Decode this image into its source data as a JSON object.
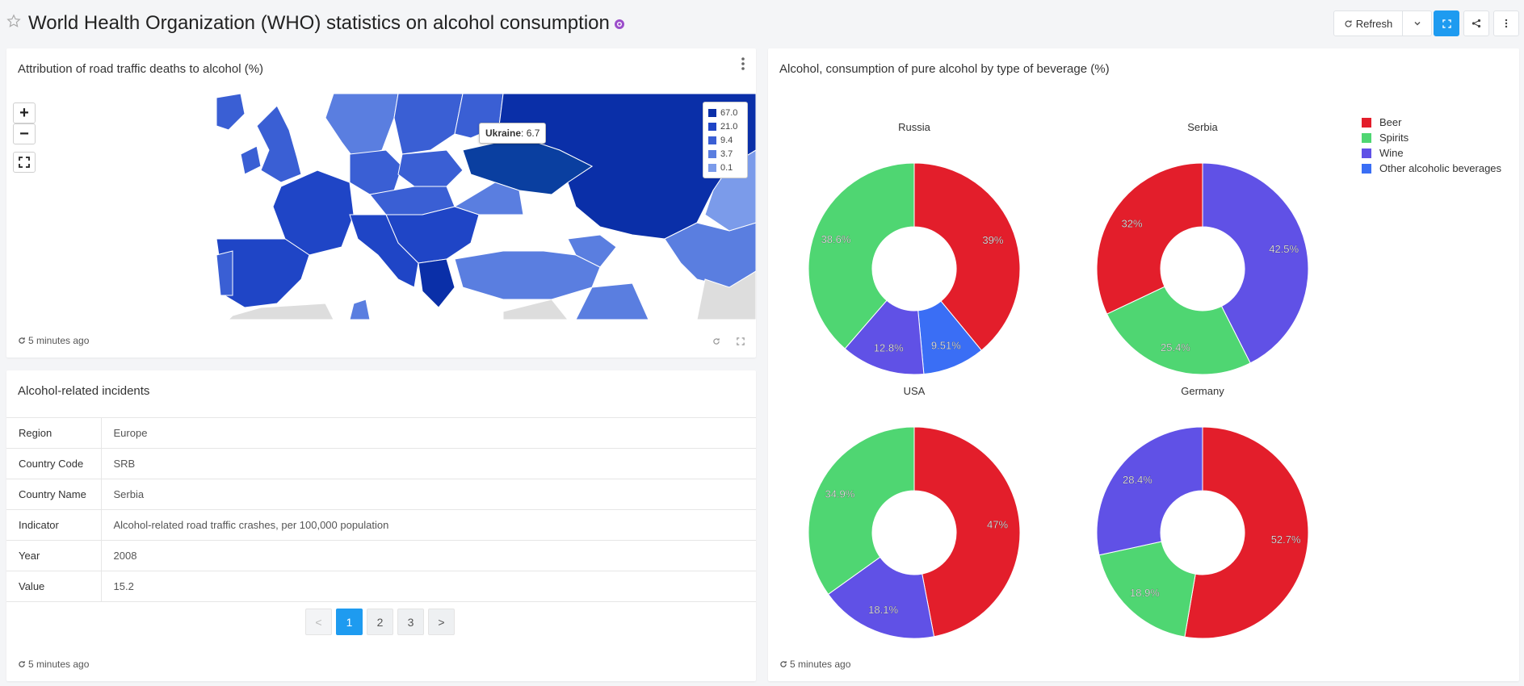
{
  "page": {
    "title": "World Health Organization (WHO) statistics on alcohol consumption"
  },
  "toolbar": {
    "refresh_label": "Refresh"
  },
  "map_panel": {
    "title": "Attribution of road traffic deaths to alcohol (%)",
    "updated": "5 minutes ago",
    "zoom_in": "+",
    "zoom_out": "−",
    "tooltip": {
      "country": "Ukraine",
      "value": ": 6.7"
    },
    "legend": [
      {
        "label": "67.0",
        "color": "#0a2fa8"
      },
      {
        "label": "21.0",
        "color": "#1f45c6"
      },
      {
        "label": "9.4",
        "color": "#3a5fd4"
      },
      {
        "label": "3.7",
        "color": "#5a7ee0"
      },
      {
        "label": "0.1",
        "color": "#7b9bea"
      }
    ]
  },
  "table_panel": {
    "title": "Alcohol-related incidents",
    "updated": "5 minutes ago",
    "rows": [
      {
        "key": "Region",
        "value": "Europe"
      },
      {
        "key": "Country Code",
        "value": "SRB"
      },
      {
        "key": "Country Name",
        "value": "Serbia"
      },
      {
        "key": "Indicator",
        "value": "Alcohol-related road traffic crashes, per 100,000 population"
      },
      {
        "key": "Year",
        "value": "2008"
      },
      {
        "key": "Value",
        "value": "15.2"
      }
    ],
    "pager": {
      "prev": "<",
      "pages": [
        "1",
        "2",
        "3"
      ],
      "next": ">",
      "active": "1"
    }
  },
  "pie_panel": {
    "title": "Alcohol, consumption of pure alcohol by type of beverage (%)",
    "updated": "5 minutes ago"
  },
  "chart_data": {
    "type": "pie",
    "donut": true,
    "title": "Alcohol, consumption of pure alcohol by type of beverage (%)",
    "legend_position": "top-right",
    "categories": [
      "Beer",
      "Spirits",
      "Wine",
      "Other alcoholic beverages"
    ],
    "colors": {
      "Beer": "#e31e2b",
      "Spirits": "#4fd672",
      "Wine": "#6051e6",
      "Other alcoholic beverages": "#3a6ef5"
    },
    "pies": [
      {
        "name": "Russia",
        "slices": [
          {
            "category": "Beer",
            "value": 39.0,
            "label": "39%"
          },
          {
            "category": "Other alcoholic beverages",
            "value": 9.51,
            "label": "9.51%"
          },
          {
            "category": "Wine",
            "value": 12.8,
            "label": "12.8%"
          },
          {
            "category": "Spirits",
            "value": 38.6,
            "label": "38.6%"
          }
        ]
      },
      {
        "name": "Serbia",
        "slices": [
          {
            "category": "Wine",
            "value": 42.5,
            "label": "42.5%"
          },
          {
            "category": "Spirits",
            "value": 25.4,
            "label": "25.4%"
          },
          {
            "category": "Beer",
            "value": 32.0,
            "label": "32%"
          }
        ]
      },
      {
        "name": "USA",
        "slices": [
          {
            "category": "Beer",
            "value": 47.0,
            "label": "47%"
          },
          {
            "category": "Wine",
            "value": 18.1,
            "label": "18.1%"
          },
          {
            "category": "Spirits",
            "value": 34.9,
            "label": "34.9%"
          }
        ]
      },
      {
        "name": "Germany",
        "slices": [
          {
            "category": "Beer",
            "value": 52.7,
            "label": "52.7%"
          },
          {
            "category": "Spirits",
            "value": 18.9,
            "label": "18.9%"
          },
          {
            "category": "Wine",
            "value": 28.4,
            "label": "28.4%"
          }
        ]
      }
    ]
  }
}
